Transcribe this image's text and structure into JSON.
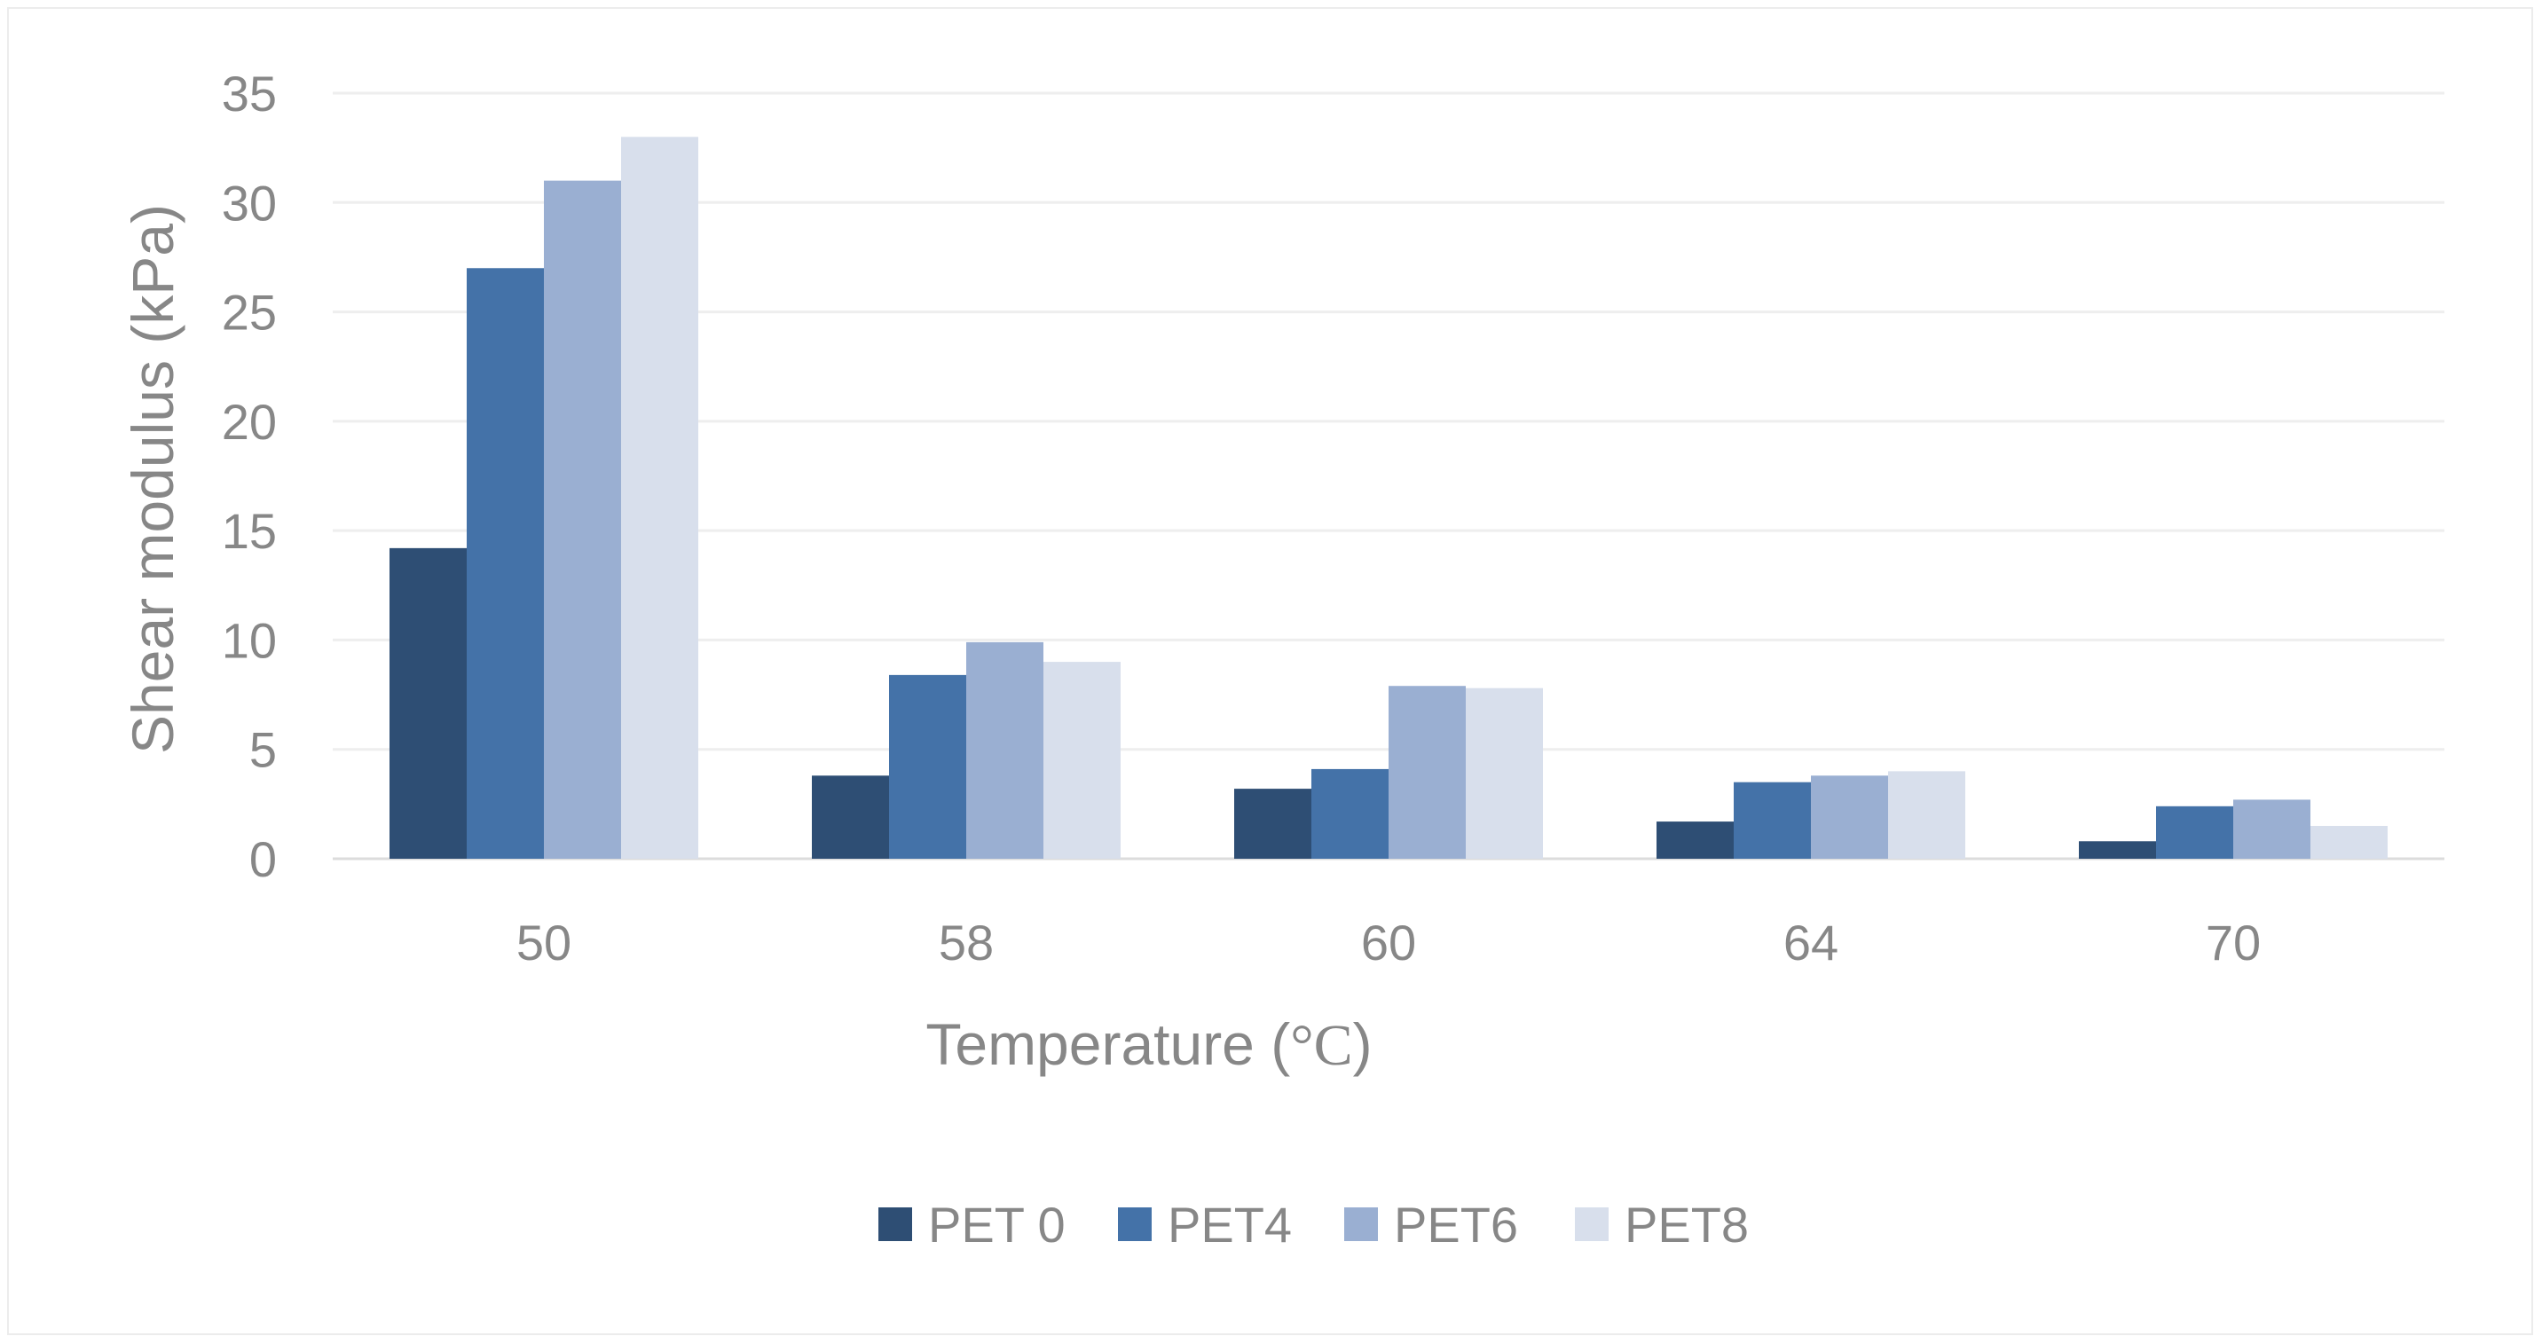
{
  "chart_data": {
    "type": "bar",
    "title": "",
    "xlabel": "Temperature (°C)",
    "xlabel_prefix": "Temperature (",
    "xlabel_unit": "°C",
    "xlabel_suffix": ")",
    "ylabel": "Shear modulus (kPa)",
    "ylim": [
      0,
      35
    ],
    "yticks": [
      0,
      5,
      10,
      15,
      20,
      25,
      30,
      35
    ],
    "grid": true,
    "legend_position": "bottom",
    "categories": [
      "50",
      "58",
      "60",
      "64",
      "70"
    ],
    "series": [
      {
        "name": "PET 0",
        "color": "#2e4e74",
        "values": [
          14.2,
          3.8,
          3.2,
          1.7,
          0.8
        ]
      },
      {
        "name": "PET4",
        "color": "#4472a8",
        "values": [
          27.0,
          8.4,
          4.1,
          3.5,
          2.4
        ]
      },
      {
        "name": "PET6",
        "color": "#9aafd2",
        "values": [
          31.0,
          9.9,
          7.9,
          3.8,
          2.7
        ]
      },
      {
        "name": "PET8",
        "color": "#d8dfec",
        "values": [
          33.0,
          9.0,
          7.8,
          4.0,
          1.5
        ]
      }
    ]
  }
}
